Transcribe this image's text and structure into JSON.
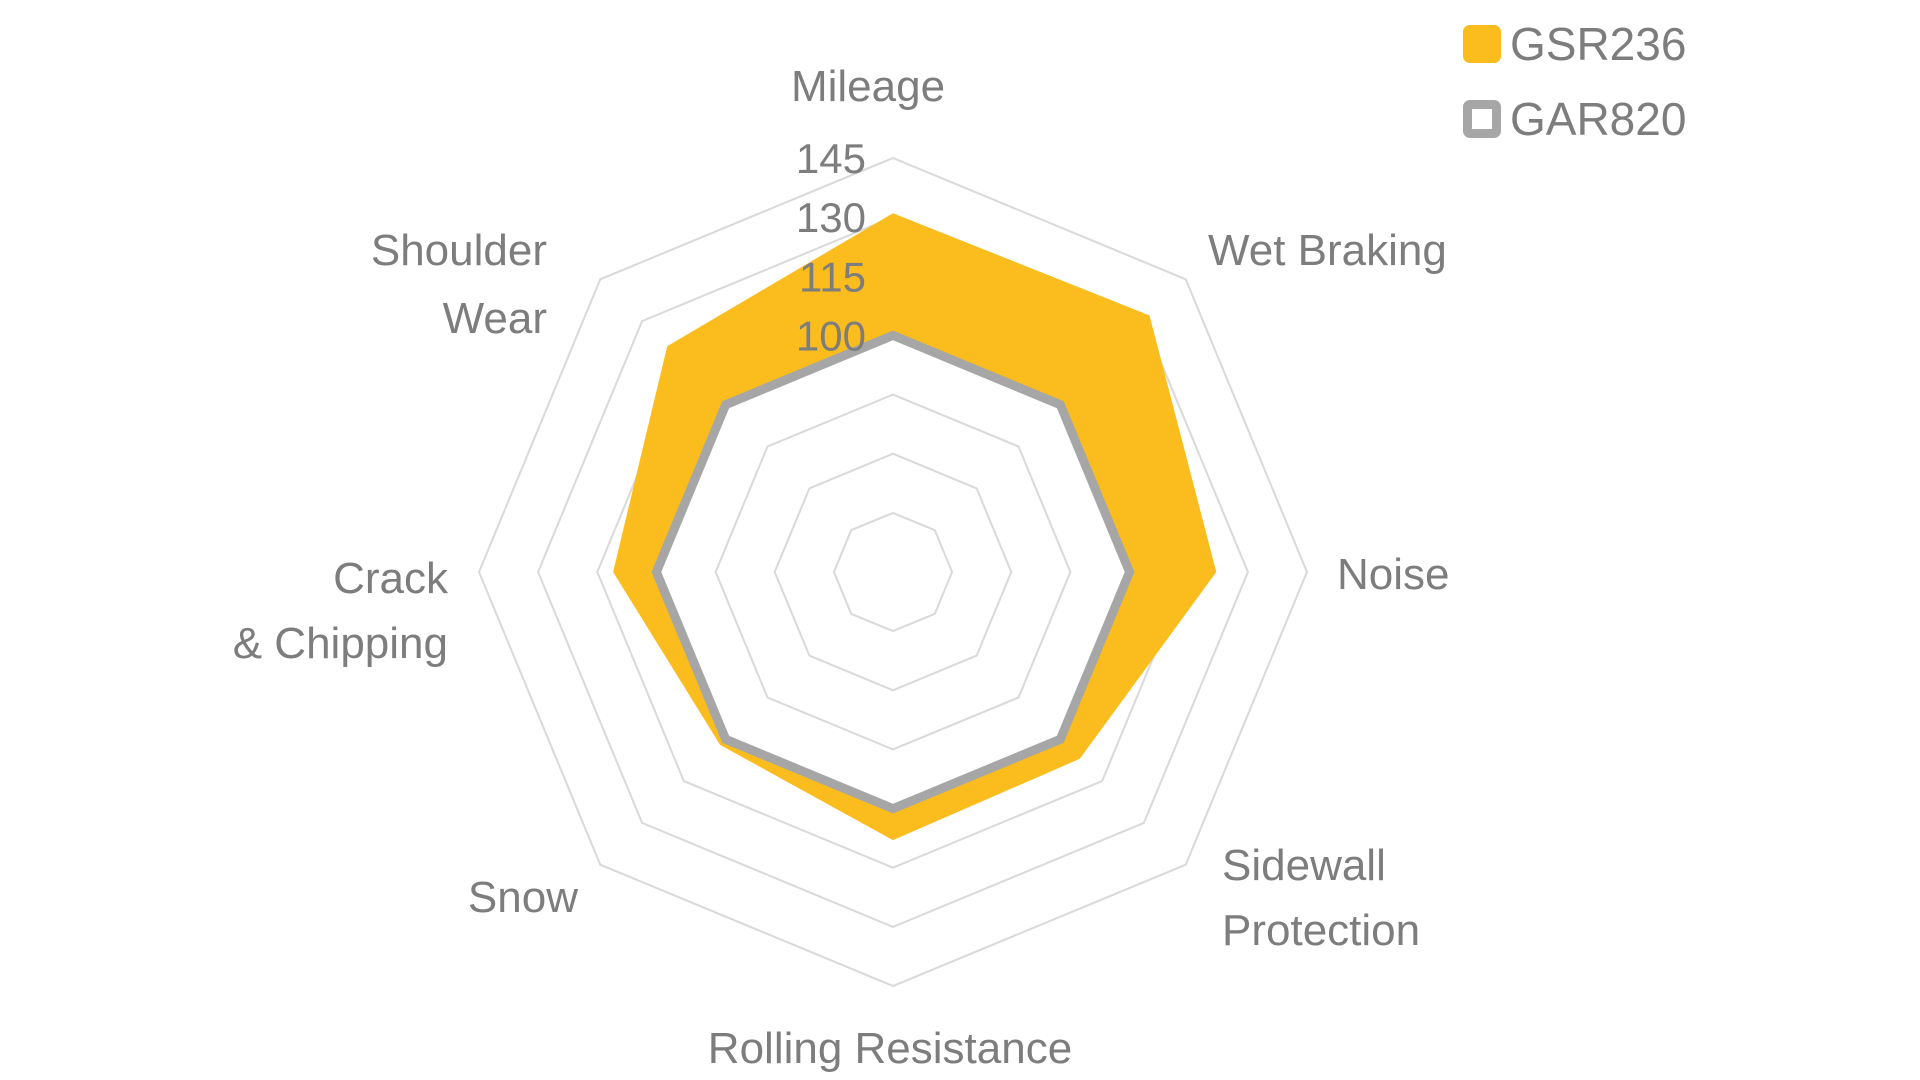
{
  "colors": {
    "series1": "#FBBC1D",
    "series2": "#A6A6A6",
    "gridline": "#D9D9D9",
    "text": "#7D7D7D",
    "background": "#FFFFFF"
  },
  "legend": {
    "items": [
      {
        "label": "GSR236",
        "swatch": "filled-yellow-square"
      },
      {
        "label": "GAR820",
        "swatch": "gray-outline-square"
      }
    ]
  },
  "chart_data": {
    "type": "radar",
    "title": "",
    "categories": [
      "Mileage",
      "Wet Braking",
      "Noise",
      "Sidewall Protection",
      "Rolling Resistance",
      "Snow",
      "Crack & Chipping",
      "Shoulder Wear"
    ],
    "category_label_lines": [
      [
        "Mileage"
      ],
      [
        "Wet Braking"
      ],
      [
        "Noise"
      ],
      [
        "Sidewall",
        "Protection"
      ],
      [
        "Rolling Resistance"
      ],
      [
        "Snow"
      ],
      [
        "Crack",
        "& Chipping"
      ],
      [
        "Shoulder",
        "Wear"
      ]
    ],
    "series": [
      {
        "name": "GSR236",
        "values": [
          131,
          132,
          122,
          107,
          108,
          102,
          111,
          121
        ],
        "style": "filled-area",
        "color": "#FBBC1D"
      },
      {
        "name": "GAR820",
        "values": [
          100,
          100,
          100,
          100,
          100,
          100,
          100,
          100
        ],
        "style": "thick-line",
        "color": "#A6A6A6"
      }
    ],
    "radial_axis": {
      "min": 40,
      "max": 145,
      "step": 15,
      "tick_labels": [
        "100",
        "115",
        "130",
        "145"
      ]
    },
    "grid": {
      "rings": "octagonal",
      "spokes": false
    },
    "legend_position": "top-right"
  }
}
